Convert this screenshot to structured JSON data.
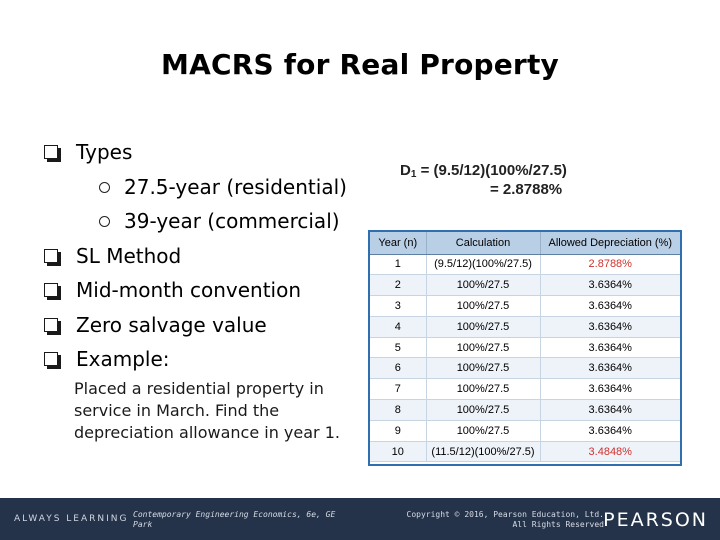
{
  "slide": {
    "title": "MACRS for Real Property"
  },
  "bullets": {
    "types": "Types",
    "sub1": "27.5-year (residential)",
    "sub2": "39-year (commercial)",
    "sl_method": "SL Method",
    "mid_month": "Mid-month convention",
    "zero_salvage": "Zero salvage value",
    "example": "Example:",
    "sub_marker": "o"
  },
  "example_text": "Placed a residential property in service in March. Find the depreciation allowance in year 1.",
  "formula": {
    "d_label": "D",
    "d_sub": "1",
    "line1_rest": " = (9.5/12)(100%/27.5)",
    "line2": "= 2.8788%"
  },
  "table": {
    "headers": [
      "Year (n)",
      "Calculation",
      "Allowed Depreciation (%)"
    ],
    "rows": [
      [
        "1",
        "(9.5/12)(100%/27.5)",
        "2.8788%"
      ],
      [
        "2",
        "100%/27.5",
        "3.6364%"
      ],
      [
        "3",
        "100%/27.5",
        "3.6364%"
      ],
      [
        "4",
        "100%/27.5",
        "3.6364%"
      ],
      [
        "5",
        "100%/27.5",
        "3.6364%"
      ],
      [
        "6",
        "100%/27.5",
        "3.6364%"
      ],
      [
        "7",
        "100%/27.5",
        "3.6364%"
      ],
      [
        "8",
        "100%/27.5",
        "3.6364%"
      ],
      [
        "9",
        "100%/27.5",
        "3.6364%"
      ],
      [
        "10",
        "(11.5/12)(100%/27.5)",
        "3.4848%"
      ]
    ],
    "highlight_color": "#d0312d"
  },
  "footer": {
    "always_learning": "ALWAYS LEARNING",
    "book_line1": "Contemporary Engineering Economics, 6e, GE",
    "book_line2": "Park",
    "copy_line1": "Copyright © 2016, Pearson Education, Ltd.",
    "copy_line2": "All Rights Reserved",
    "brand": "PEARSON"
  }
}
